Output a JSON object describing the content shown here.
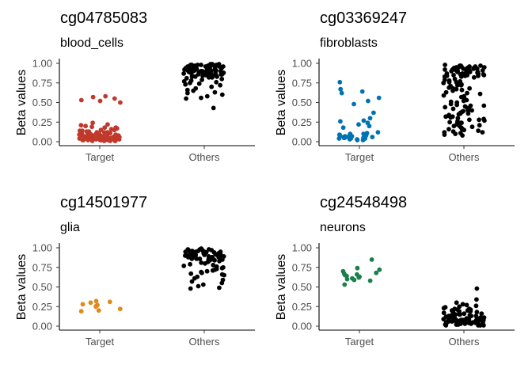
{
  "chart_data": [
    {
      "type": "scatter",
      "title": "cg04785083",
      "subtitle": "blood_cells",
      "ylabel": "Beta values",
      "categories": [
        "Target",
        "Others"
      ],
      "ylim": [
        0,
        1
      ],
      "yticks": [
        "0.00",
        "0.25",
        "0.50",
        "0.75",
        "1.00"
      ],
      "colors": {
        "Target": "#c0392b",
        "Others": "#000000"
      },
      "series": [
        {
          "category": "Target",
          "values": [
            0.58,
            0.57,
            0.55,
            0.53,
            0.52,
            0.5,
            0.24,
            0.22,
            0.21,
            0.2,
            0.19,
            0.18,
            0.18,
            0.17,
            0.16,
            0.15,
            0.15,
            0.14,
            0.14,
            0.13,
            0.13,
            0.12,
            0.12,
            0.12,
            0.11,
            0.11,
            0.1,
            0.1,
            0.1,
            0.09,
            0.09,
            0.09,
            0.08,
            0.08,
            0.08,
            0.08,
            0.07,
            0.07,
            0.07,
            0.07,
            0.06,
            0.06,
            0.06,
            0.06,
            0.05,
            0.05,
            0.05,
            0.05,
            0.05,
            0.04,
            0.04,
            0.04,
            0.04,
            0.04,
            0.03,
            0.03,
            0.03,
            0.03,
            0.03,
            0.02,
            0.02,
            0.02,
            0.02,
            0.02,
            0.02,
            0.01,
            0.01,
            0.01,
            0.01,
            0.01,
            0.06,
            0.09,
            0.12,
            0.05,
            0.03,
            0.08,
            0.1,
            0.04,
            0.07,
            0.02
          ]
        },
        {
          "category": "Others",
          "values": [
            0.99,
            0.99,
            0.98,
            0.98,
            0.98,
            0.97,
            0.97,
            0.97,
            0.96,
            0.96,
            0.96,
            0.95,
            0.95,
            0.95,
            0.94,
            0.94,
            0.94,
            0.93,
            0.93,
            0.93,
            0.92,
            0.92,
            0.92,
            0.91,
            0.91,
            0.91,
            0.9,
            0.9,
            0.9,
            0.89,
            0.89,
            0.89,
            0.88,
            0.88,
            0.88,
            0.87,
            0.87,
            0.87,
            0.86,
            0.86,
            0.86,
            0.85,
            0.85,
            0.85,
            0.84,
            0.84,
            0.84,
            0.83,
            0.83,
            0.83,
            0.82,
            0.82,
            0.81,
            0.8,
            0.79,
            0.78,
            0.77,
            0.76,
            0.75,
            0.74,
            0.73,
            0.72,
            0.7,
            0.68,
            0.66,
            0.65,
            0.63,
            0.62,
            0.6,
            0.58,
            0.56,
            0.55,
            0.43,
            0.99,
            0.97,
            0.95,
            0.93,
            0.91,
            0.9,
            0.88,
            0.86,
            0.98,
            0.96,
            0.94,
            0.92,
            0.89,
            0.87,
            0.85,
            0.97,
            0.95,
            0.93,
            0.91,
            0.9,
            0.96,
            0.94,
            0.92,
            0.98,
            0.95,
            0.93,
            0.89
          ]
        }
      ]
    },
    {
      "type": "scatter",
      "title": "cg03369247",
      "subtitle": "fibroblasts",
      "ylabel": "Beta values",
      "categories": [
        "Target",
        "Others"
      ],
      "ylim": [
        0,
        1
      ],
      "yticks": [
        "0.00",
        "0.25",
        "0.50",
        "0.75",
        "1.00"
      ],
      "colors": {
        "Target": "#0072b2",
        "Others": "#000000"
      },
      "series": [
        {
          "category": "Target",
          "values": [
            0.76,
            0.67,
            0.64,
            0.62,
            0.56,
            0.52,
            0.48,
            0.37,
            0.3,
            0.27,
            0.26,
            0.24,
            0.22,
            0.2,
            0.18,
            0.12,
            0.11,
            0.1,
            0.1,
            0.09,
            0.09,
            0.08,
            0.08,
            0.07,
            0.07,
            0.06,
            0.06,
            0.05,
            0.05,
            0.05,
            0.04,
            0.04,
            0.04,
            0.03,
            0.03,
            0.03,
            0.02,
            0.02,
            0.06,
            0.08
          ]
        },
        {
          "category": "Others",
          "values": [
            0.98,
            0.97,
            0.97,
            0.96,
            0.96,
            0.95,
            0.95,
            0.94,
            0.94,
            0.93,
            0.93,
            0.92,
            0.92,
            0.91,
            0.91,
            0.9,
            0.9,
            0.89,
            0.89,
            0.88,
            0.88,
            0.87,
            0.87,
            0.86,
            0.86,
            0.85,
            0.85,
            0.84,
            0.84,
            0.83,
            0.83,
            0.82,
            0.8,
            0.79,
            0.78,
            0.77,
            0.76,
            0.75,
            0.74,
            0.73,
            0.72,
            0.71,
            0.7,
            0.69,
            0.68,
            0.67,
            0.66,
            0.65,
            0.63,
            0.61,
            0.59,
            0.57,
            0.55,
            0.53,
            0.51,
            0.5,
            0.48,
            0.47,
            0.46,
            0.45,
            0.44,
            0.43,
            0.42,
            0.41,
            0.4,
            0.39,
            0.38,
            0.37,
            0.36,
            0.35,
            0.34,
            0.33,
            0.32,
            0.31,
            0.3,
            0.29,
            0.28,
            0.27,
            0.26,
            0.25,
            0.24,
            0.23,
            0.22,
            0.21,
            0.2,
            0.19,
            0.18,
            0.17,
            0.16,
            0.15,
            0.14,
            0.13,
            0.12,
            0.11,
            0.1,
            0.09,
            0.08,
            0.96,
            0.94,
            0.92,
            0.9,
            0.88,
            0.86,
            0.84,
            0.97,
            0.95,
            0.93,
            0.91,
            0.89,
            0.87,
            0.85,
            0.76,
            0.72,
            0.68,
            0.62,
            0.58,
            0.52,
            0.46,
            0.4,
            0.36,
            0.32,
            0.28,
            0.24,
            0.2,
            0.16,
            0.12
          ]
        }
      ]
    },
    {
      "type": "scatter",
      "title": "cg14501977",
      "subtitle": "glia",
      "ylabel": "Beta values",
      "categories": [
        "Target",
        "Others"
      ],
      "ylim": [
        0,
        1
      ],
      "yticks": [
        "0.00",
        "0.25",
        "0.50",
        "0.75",
        "1.00"
      ],
      "colors": {
        "Target": "#e08a1e",
        "Others": "#000000"
      },
      "series": [
        {
          "category": "Target",
          "values": [
            0.32,
            0.31,
            0.3,
            0.28,
            0.27,
            0.26,
            0.25,
            0.22,
            0.2,
            0.19
          ]
        },
        {
          "category": "Others",
          "values": [
            0.99,
            0.98,
            0.98,
            0.97,
            0.97,
            0.96,
            0.96,
            0.95,
            0.95,
            0.94,
            0.94,
            0.93,
            0.93,
            0.92,
            0.92,
            0.91,
            0.91,
            0.9,
            0.9,
            0.89,
            0.89,
            0.88,
            0.88,
            0.87,
            0.87,
            0.86,
            0.86,
            0.85,
            0.85,
            0.84,
            0.84,
            0.83,
            0.82,
            0.81,
            0.8,
            0.79,
            0.78,
            0.77,
            0.76,
            0.75,
            0.74,
            0.73,
            0.72,
            0.71,
            0.7,
            0.69,
            0.68,
            0.67,
            0.66,
            0.65,
            0.63,
            0.61,
            0.59,
            0.57,
            0.55,
            0.53,
            0.51,
            0.49,
            0.48,
            0.97,
            0.95,
            0.93,
            0.91,
            0.89,
            0.87,
            0.85,
            0.96,
            0.94,
            0.92,
            0.9,
            0.88,
            0.86,
            0.98,
            0.95,
            0.93,
            0.9,
            0.88,
            0.96,
            0.94,
            0.91
          ]
        }
      ]
    },
    {
      "type": "scatter",
      "title": "cg24548498",
      "subtitle": "neurons",
      "ylabel": "Beta values",
      "categories": [
        "Target",
        "Others"
      ],
      "ylim": [
        0,
        1
      ],
      "yticks": [
        "0.00",
        "0.25",
        "0.50",
        "0.75",
        "1.00"
      ],
      "colors": {
        "Target": "#1a7f4b",
        "Others": "#000000"
      },
      "series": [
        {
          "category": "Target",
          "values": [
            0.85,
            0.74,
            0.72,
            0.7,
            0.68,
            0.67,
            0.66,
            0.65,
            0.64,
            0.63,
            0.62,
            0.61,
            0.6,
            0.59,
            0.58,
            0.53
          ]
        },
        {
          "category": "Others",
          "values": [
            0.48,
            0.34,
            0.3,
            0.28,
            0.27,
            0.26,
            0.25,
            0.24,
            0.23,
            0.22,
            0.22,
            0.21,
            0.21,
            0.2,
            0.2,
            0.19,
            0.19,
            0.18,
            0.18,
            0.17,
            0.17,
            0.16,
            0.16,
            0.15,
            0.15,
            0.14,
            0.14,
            0.13,
            0.13,
            0.12,
            0.12,
            0.11,
            0.11,
            0.1,
            0.1,
            0.1,
            0.09,
            0.09,
            0.09,
            0.08,
            0.08,
            0.08,
            0.07,
            0.07,
            0.07,
            0.06,
            0.06,
            0.06,
            0.05,
            0.05,
            0.05,
            0.05,
            0.04,
            0.04,
            0.04,
            0.04,
            0.03,
            0.03,
            0.03,
            0.03,
            0.02,
            0.02,
            0.02,
            0.02,
            0.01,
            0.01,
            0.01,
            0.01,
            0.06,
            0.08,
            0.1,
            0.12,
            0.05,
            0.07,
            0.09,
            0.11,
            0.04,
            0.03,
            0.06,
            0.08,
            0.1,
            0.02,
            0.05,
            0.07,
            0.09,
            0.13,
            0.15,
            0.04,
            0.06,
            0.03
          ]
        }
      ]
    }
  ]
}
